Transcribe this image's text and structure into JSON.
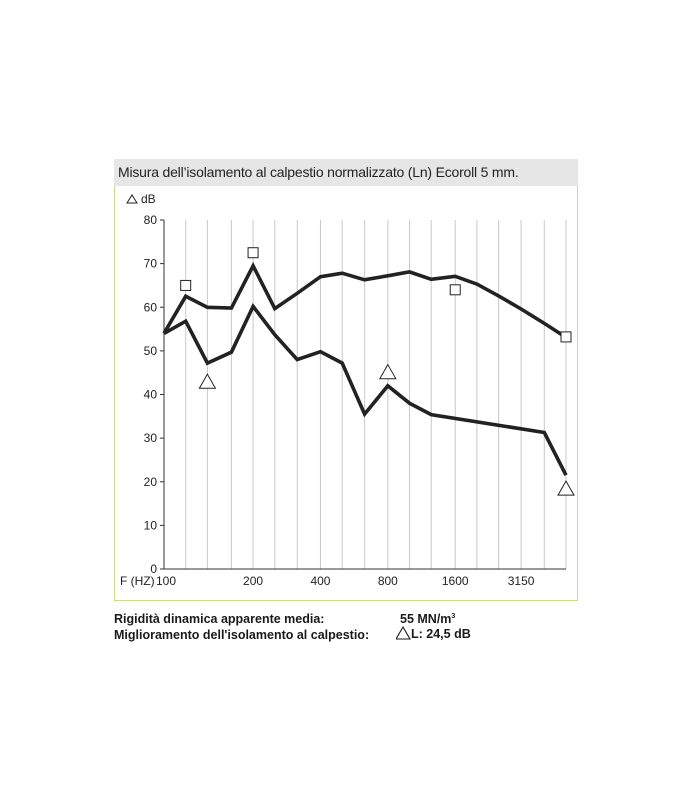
{
  "chart_data": {
    "type": "line",
    "title": "Misura dell’isolamento al calpestio normalizzato (Ln) Ecoroll 5 mm.",
    "ylabel": "dB",
    "xlabel": "F (HZ)",
    "ylim": [
      0,
      80
    ],
    "yticks": [
      "0",
      "10",
      "20",
      "30",
      "40",
      "50",
      "60",
      "70",
      "80"
    ],
    "xticks": [
      "100",
      "200",
      "400",
      "800",
      "1600",
      "3150"
    ],
    "grid": "vertical",
    "series": [
      {
        "marker": "square",
        "values": [
          [
            80,
            54
          ],
          [
            100,
            62.5
          ],
          [
            125,
            60
          ],
          [
            160,
            59.8
          ],
          [
            200,
            69.5
          ],
          [
            250,
            59.7
          ],
          [
            315,
            63.2
          ],
          [
            400,
            67
          ],
          [
            500,
            67.8
          ],
          [
            630,
            66.3
          ],
          [
            800,
            67.2
          ],
          [
            1000,
            68.1
          ],
          [
            1250,
            66.4
          ],
          [
            1600,
            67.1
          ],
          [
            2000,
            65.3
          ],
          [
            2500,
            62.6
          ],
          [
            3150,
            59.6
          ],
          [
            4000,
            56.3
          ],
          [
            5000,
            53.1
          ]
        ],
        "markers": [
          [
            100,
            65
          ],
          [
            200,
            72.5
          ],
          [
            1600,
            64
          ],
          [
            5000,
            53.2
          ]
        ]
      },
      {
        "marker": "triangle",
        "values": [
          [
            80,
            54
          ],
          [
            100,
            56.8
          ],
          [
            125,
            47.2
          ],
          [
            160,
            49.7
          ],
          [
            200,
            60.2
          ],
          [
            250,
            53.7
          ],
          [
            315,
            48
          ],
          [
            400,
            49.8
          ],
          [
            500,
            47.2
          ],
          [
            630,
            35.5
          ],
          [
            800,
            42
          ],
          [
            1000,
            38
          ],
          [
            1250,
            35.4
          ],
          [
            4000,
            31.3
          ],
          [
            5000,
            21.5
          ]
        ],
        "markers": [
          [
            125,
            42.8
          ],
          [
            800,
            45
          ],
          [
            5000,
            18.3
          ]
        ]
      }
    ]
  },
  "footer": {
    "rows": [
      {
        "label": "Rigidità dinamica apparente media:",
        "value": "55 MN/m",
        "sup": "3"
      },
      {
        "label": "Miglioramento dell'isolamento al calpestio:",
        "value": "L: 24,5 dB",
        "symbol": "triangle"
      }
    ]
  }
}
